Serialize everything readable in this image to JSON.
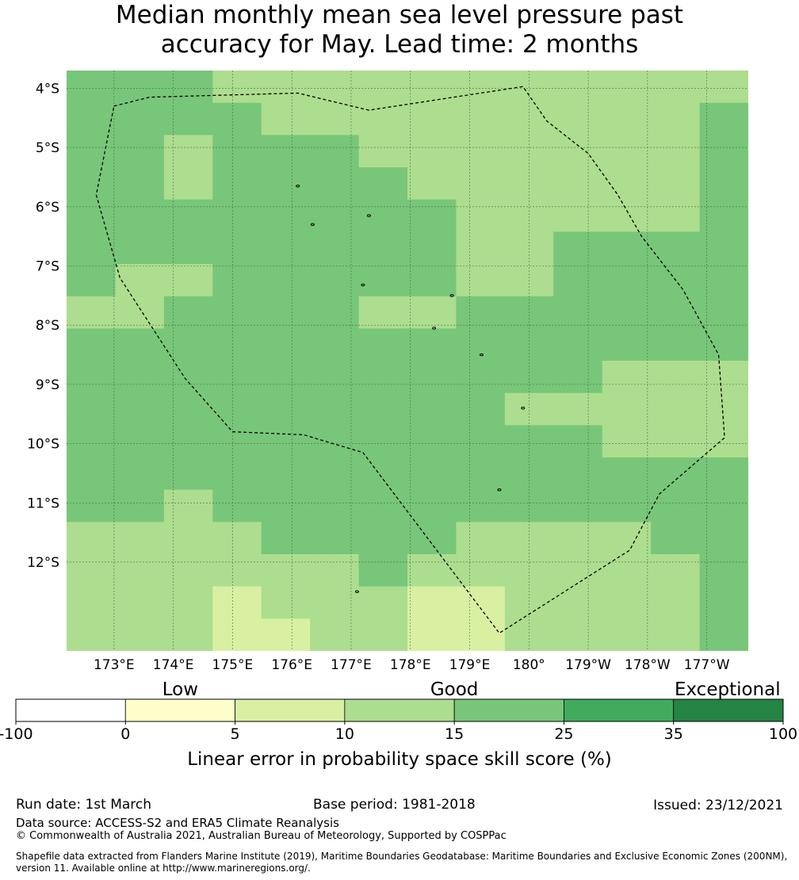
{
  "title": {
    "line1": "Median monthly mean sea level pressure past",
    "line2": "accuracy for May. Lead time: 2 months"
  },
  "map": {
    "lat_labels": [
      "4°S",
      "5°S",
      "6°S",
      "7°S",
      "8°S",
      "9°S",
      "10°S",
      "11°S",
      "12°S"
    ],
    "lon_labels": [
      "173°E",
      "174°E",
      "175°E",
      "176°E",
      "177°E",
      "178°E",
      "179°E",
      "180°",
      "179°W",
      "178°W",
      "177°W"
    ],
    "lat_range": [
      -13.5,
      -3.7
    ],
    "lon_range": [
      172.2,
      183.7
    ],
    "grid_cell_deg": 0.83,
    "score_grid": [
      [
        15,
        15,
        15,
        10,
        10,
        10,
        10,
        10,
        10,
        10,
        10,
        10,
        10,
        10
      ],
      [
        15,
        15,
        15,
        15,
        10,
        10,
        10,
        10,
        10,
        10,
        10,
        10,
        10,
        15
      ],
      [
        15,
        15,
        10,
        15,
        15,
        15,
        10,
        10,
        10,
        10,
        10,
        10,
        10,
        15
      ],
      [
        15,
        15,
        10,
        15,
        15,
        15,
        15,
        10,
        10,
        10,
        10,
        10,
        10,
        15
      ],
      [
        15,
        15,
        15,
        15,
        15,
        15,
        15,
        15,
        10,
        10,
        10,
        10,
        10,
        15
      ],
      [
        15,
        15,
        15,
        15,
        15,
        15,
        15,
        15,
        10,
        10,
        15,
        15,
        15,
        15
      ],
      [
        15,
        10,
        10,
        15,
        15,
        15,
        15,
        15,
        10,
        10,
        15,
        15,
        15,
        15
      ],
      [
        10,
        10,
        15,
        15,
        15,
        15,
        10,
        10,
        15,
        15,
        15,
        15,
        15,
        15
      ],
      [
        15,
        15,
        15,
        15,
        15,
        15,
        15,
        15,
        15,
        15,
        15,
        15,
        15,
        15
      ],
      [
        15,
        15,
        15,
        15,
        15,
        15,
        15,
        15,
        15,
        15,
        15,
        10,
        10,
        10
      ],
      [
        15,
        15,
        15,
        15,
        15,
        15,
        15,
        15,
        15,
        10,
        10,
        10,
        10,
        10
      ],
      [
        15,
        15,
        15,
        15,
        15,
        15,
        15,
        15,
        15,
        15,
        15,
        10,
        10,
        10
      ],
      [
        15,
        15,
        15,
        15,
        15,
        15,
        15,
        15,
        15,
        15,
        15,
        15,
        15,
        15
      ],
      [
        15,
        15,
        10,
        15,
        15,
        15,
        15,
        15,
        15,
        15,
        15,
        15,
        15,
        15
      ],
      [
        10,
        10,
        10,
        10,
        15,
        15,
        15,
        15,
        10,
        10,
        10,
        10,
        15,
        15
      ],
      [
        10,
        10,
        10,
        10,
        10,
        10,
        15,
        10,
        10,
        10,
        10,
        10,
        10,
        15
      ],
      [
        10,
        10,
        10,
        5,
        10,
        10,
        10,
        5,
        5,
        10,
        10,
        10,
        10,
        15
      ],
      [
        10,
        10,
        10,
        5,
        5,
        10,
        10,
        5,
        5,
        10,
        10,
        10,
        10,
        15
      ]
    ],
    "eez_boundary": [
      [
        173.0,
        -4.3
      ],
      [
        173.6,
        -4.15
      ],
      [
        176.1,
        -4.08
      ],
      [
        177.3,
        -4.37
      ],
      [
        179.9,
        -3.97
      ],
      [
        180.3,
        -4.55
      ],
      [
        181.0,
        -5.1
      ],
      [
        181.5,
        -5.8
      ],
      [
        181.9,
        -6.5
      ],
      [
        182.6,
        -7.4
      ],
      [
        183.2,
        -8.5
      ],
      [
        183.3,
        -9.9
      ],
      [
        182.2,
        -10.85
      ],
      [
        181.7,
        -11.8
      ],
      [
        179.5,
        -13.2
      ],
      [
        177.2,
        -10.15
      ],
      [
        176.2,
        -9.85
      ],
      [
        175.0,
        -9.8
      ],
      [
        174.2,
        -8.9
      ],
      [
        173.1,
        -7.2
      ],
      [
        172.7,
        -5.8
      ],
      [
        173.0,
        -4.3
      ]
    ],
    "islands": [
      [
        176.1,
        -5.65
      ],
      [
        176.35,
        -6.3
      ],
      [
        177.3,
        -6.15
      ],
      [
        177.2,
        -7.32
      ],
      [
        178.7,
        -7.5
      ],
      [
        178.4,
        -8.05
      ],
      [
        179.2,
        -8.5
      ],
      [
        179.9,
        -9.4
      ],
      [
        179.5,
        -10.78
      ],
      [
        177.1,
        -12.5
      ]
    ]
  },
  "colorbar": {
    "boundaries": [
      -100,
      0,
      5,
      10,
      15,
      25,
      35,
      100
    ],
    "tick_labels": [
      "-100",
      "0",
      "5",
      "10",
      "15",
      "25",
      "35",
      "100"
    ],
    "colors": [
      "#ffffff",
      "#ffffcc",
      "#d9f0a3",
      "#addd8e",
      "#78c679",
      "#41ab5d",
      "#238443"
    ],
    "categories": [
      {
        "label": "Low",
        "center_value": 2.5
      },
      {
        "label": "Good",
        "center_value": 15
      },
      {
        "label": "Exceptional",
        "center_value": 67
      }
    ],
    "axis_label": "Linear error in probability space skill score (%)"
  },
  "footer": {
    "run_date": "Run date: 1st March",
    "base_period": "Base period: 1981-2018",
    "issued": "Issued: 23/12/2021",
    "data_source": "Data source: ACCESS-S2 and ERA5 Climate Reanalysis",
    "copyright": "© Commonwealth of Australia 2021, Australian Bureau of Meteorology, Supported by COSPPac",
    "shapefile_line1": "Shapefile data extracted from Flanders Marine Institute (2019), Maritime Boundaries Geodatabase: Maritime Boundaries and Exclusive Economic Zones (200NM),",
    "shapefile_line2": "version 11. Available online at http://www.marineregions.org/."
  }
}
